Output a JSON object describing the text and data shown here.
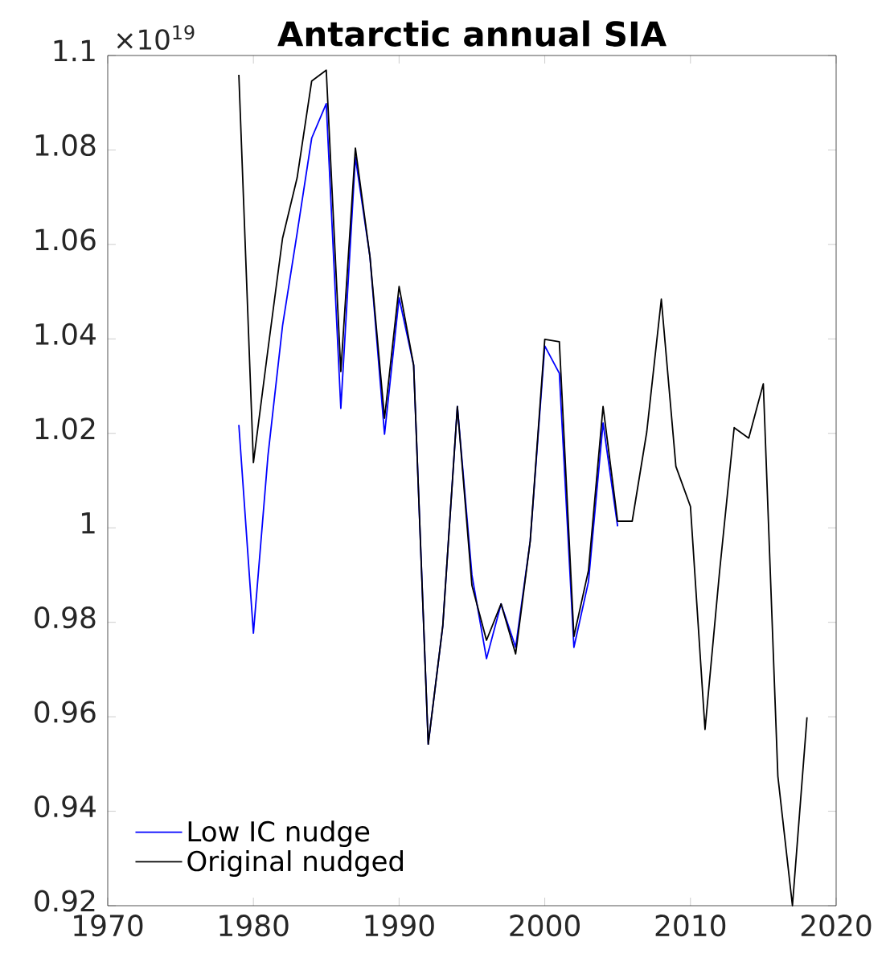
{
  "chart_data": {
    "type": "line",
    "title": "Antarctic annual SIA",
    "annotations": [
      "×10$^{19}$"
    ],
    "x": [
      1979,
      1980,
      1981,
      1982,
      1983,
      1984,
      1985,
      1986,
      1987,
      1988,
      1989,
      1990,
      1991,
      1992,
      1993,
      1994,
      1995,
      1996,
      1997,
      1998,
      1999,
      2000,
      2001,
      2002,
      2003,
      2004,
      2005,
      2006,
      2007,
      2008,
      2009,
      2010,
      2011,
      2012,
      2013,
      2014,
      2015,
      2016,
      2017,
      2018
    ],
    "series": [
      {
        "name": "Low IC nudge",
        "color": "#0000ff",
        "values": [
          1.0218,
          0.9777,
          1.0153,
          1.0428,
          1.0624,
          1.0825,
          1.0898,
          1.0253,
          1.0785,
          1.0574,
          1.0198,
          1.0487,
          1.0344,
          0.9542,
          0.9793,
          1.0257,
          0.99,
          0.9723,
          0.9839,
          0.9747,
          0.9972,
          1.0385,
          1.0327,
          0.9747,
          0.9886,
          1.0222,
          1.0003,
          null,
          null,
          null,
          null,
          null,
          null,
          null,
          null,
          null,
          null,
          null,
          null,
          null
        ]
      },
      {
        "name": "Original nudged",
        "color": "#000000",
        "values": [
          1.0959,
          1.0138,
          1.0378,
          1.0613,
          1.0741,
          1.0946,
          1.0969,
          1.0331,
          1.0804,
          1.0574,
          1.0232,
          1.0511,
          1.0344,
          0.9542,
          0.9793,
          1.0257,
          0.9878,
          0.9762,
          0.9839,
          0.9733,
          0.9972,
          1.0399,
          1.0394,
          0.977,
          0.991,
          1.0257,
          1.0014,
          1.0014,
          1.0203,
          1.0484,
          1.013,
          1.0045,
          0.9573,
          0.9908,
          1.0212,
          1.019,
          1.0305,
          0.9474,
          0.92,
          0.9599
        ]
      }
    ],
    "xlim": [
      1970,
      2020
    ],
    "xticks": [
      1970,
      1980,
      1990,
      2000,
      2010,
      2020
    ],
    "ylim": [
      0.92,
      1.1
    ],
    "yticks": [
      0.92,
      0.94,
      0.96,
      0.98,
      1,
      1.02,
      1.04,
      1.06,
      1.08,
      1.1
    ],
    "grid": false,
    "legend": "bottom left",
    "marker": "none",
    "line_style": "solid"
  }
}
